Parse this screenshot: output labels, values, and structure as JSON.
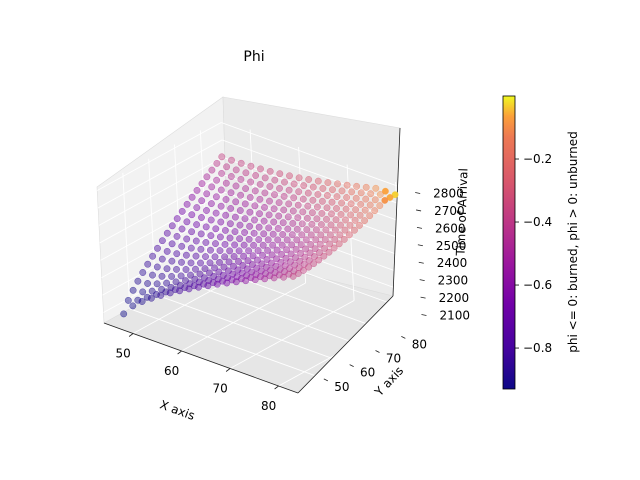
{
  "chart_data": {
    "type": "scatter",
    "projection": "3d",
    "title": "Phi",
    "xlabel": "X axis",
    "ylabel": "Y axis",
    "zlabel": "Time of Arrival",
    "xlim": [
      44,
      84
    ],
    "ylim": [
      40,
      88
    ],
    "zlim": [
      2040,
      2820
    ],
    "xticks": [
      50,
      60,
      70,
      80
    ],
    "yticks": [
      50,
      60,
      70,
      80
    ],
    "zticks": [
      2100,
      2200,
      2300,
      2400,
      2500,
      2600,
      2700,
      2800
    ],
    "grid": true,
    "colormap": "plasma",
    "colorbar": {
      "label": "phi <= 0: burned, phi > 0: unburned",
      "range": [
        -0.93,
        0.0
      ],
      "ticks": [
        -0.8,
        -0.6,
        -0.4,
        -0.2
      ],
      "tick_labels": [
        "−0.8",
        "−0.6",
        "−0.4",
        "−0.2"
      ]
    },
    "series": [
      {
        "points_description": "grid of points x in [46,82], y in [44,84]; time of arrival rises from ~2080 near x=46,y=44 to ~2800 at the far corner; phi colors from about -0.9 (dark) to 0 (yellow) at the fire front",
        "x_range": [
          46,
          82
        ],
        "y_range": [
          44,
          84
        ],
        "z_range": [
          2080,
          2800
        ]
      }
    ]
  }
}
